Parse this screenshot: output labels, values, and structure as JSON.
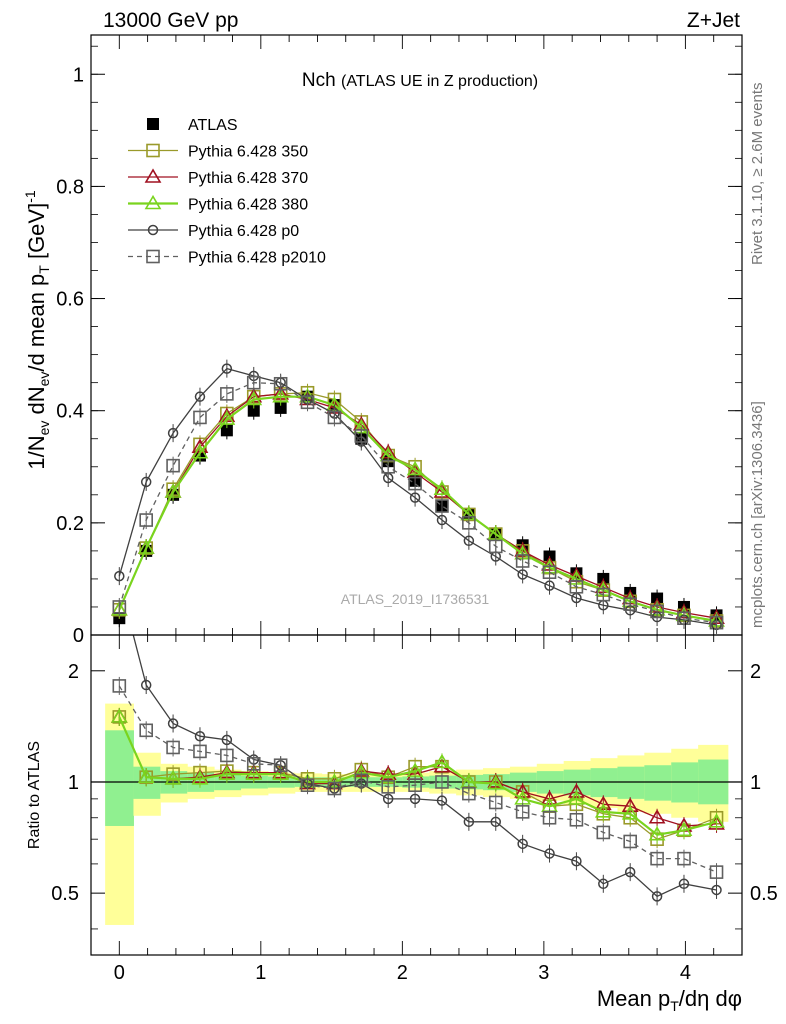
{
  "header": {
    "energy_label": "13000 GeV pp",
    "process_label": "Z+Jet"
  },
  "side_labels": {
    "rivet": "Rivet 3.1.10, ≥ 2.6M events",
    "mcplots": "mcplots.cern.ch [arXiv:1306.3436]"
  },
  "chart_data": [
    {
      "type": "line",
      "panel": "main",
      "title": "Nch",
      "subtitle": "(ATLAS UE in Z production)",
      "watermark": "ATLAS_2019_I1736531",
      "ylabel": "1/Nev dNev/d mean pT [GeV]-1",
      "ylim": [
        0,
        1.07
      ],
      "xlim": [
        -0.2,
        4.4
      ],
      "yticks": [
        0,
        0.2,
        0.4,
        0.6,
        0.8,
        1
      ],
      "ytick_labels": [
        "0",
        "0.2",
        "0.4",
        "0.6",
        "0.8",
        "1"
      ],
      "legend": "top-left",
      "x": [
        0.0,
        0.19,
        0.38,
        0.57,
        0.76,
        0.95,
        1.14,
        1.33,
        1.52,
        1.71,
        1.9,
        2.09,
        2.28,
        2.47,
        2.66,
        2.85,
        3.04,
        3.23,
        3.42,
        3.61,
        3.8,
        3.99,
        4.22
      ],
      "series": [
        {
          "name": "ATLAS",
          "color": "#000000",
          "marker": "filled-square",
          "line": "none",
          "values": [
            0.03,
            0.15,
            0.25,
            0.32,
            0.365,
            0.4,
            0.405,
            0.425,
            0.41,
            0.35,
            0.31,
            0.275,
            0.23,
            0.215,
            0.18,
            0.16,
            0.14,
            0.11,
            0.1,
            0.075,
            0.065,
            0.05,
            0.035
          ]
        },
        {
          "name": "Pythia 6.428 350",
          "color": "#9a9a2a",
          "marker": "open-square",
          "line": "solid",
          "values": [
            0.045,
            0.155,
            0.26,
            0.34,
            0.395,
            0.425,
            0.43,
            0.432,
            0.42,
            0.38,
            0.32,
            0.3,
            0.255,
            0.215,
            0.18,
            0.15,
            0.12,
            0.095,
            0.08,
            0.06,
            0.045,
            0.035,
            0.025
          ]
        },
        {
          "name": "Pythia 6.428 370",
          "color": "#a01020",
          "marker": "open-triangle",
          "line": "solid",
          "values": [
            0.045,
            0.155,
            0.255,
            0.335,
            0.39,
            0.425,
            0.43,
            0.42,
            0.405,
            0.375,
            0.325,
            0.29,
            0.255,
            0.215,
            0.18,
            0.15,
            0.125,
            0.105,
            0.085,
            0.065,
            0.05,
            0.04,
            0.03
          ]
        },
        {
          "name": "Pythia 6.428 380",
          "color": "#7ad41e",
          "marker": "open-triangle",
          "line": "solid",
          "values": [
            0.045,
            0.155,
            0.255,
            0.325,
            0.385,
            0.42,
            0.425,
            0.425,
            0.41,
            0.37,
            0.32,
            0.295,
            0.26,
            0.215,
            0.18,
            0.145,
            0.12,
            0.1,
            0.08,
            0.06,
            0.045,
            0.035,
            0.025
          ]
        },
        {
          "name": "Pythia 6.428 p0",
          "color": "#404040",
          "marker": "open-circle",
          "line": "solid",
          "values": [
            0.105,
            0.273,
            0.36,
            0.425,
            0.475,
            0.462,
            0.45,
            0.42,
            0.395,
            0.345,
            0.28,
            0.245,
            0.205,
            0.168,
            0.14,
            0.108,
            0.088,
            0.066,
            0.053,
            0.044,
            0.032,
            0.027,
            0.018
          ]
        },
        {
          "name": "Pythia 6.428 p2010",
          "color": "#606060",
          "marker": "open-square",
          "line": "dashed",
          "values": [
            0.05,
            0.205,
            0.302,
            0.388,
            0.43,
            0.45,
            0.448,
            0.415,
            0.388,
            0.355,
            0.3,
            0.27,
            0.23,
            0.2,
            0.158,
            0.132,
            0.112,
            0.086,
            0.072,
            0.055,
            0.042,
            0.03,
            0.022
          ]
        }
      ]
    },
    {
      "type": "line",
      "panel": "ratio",
      "ylabel": "Ratio to ATLAS",
      "xlabel": "Mean pT/dη dφ",
      "ylim": [
        0.34,
        2.5
      ],
      "log_y": true,
      "xlim": [
        -0.2,
        4.4
      ],
      "yticks": [
        0.5,
        1,
        2
      ],
      "ytick_labels": [
        "0.5",
        "1",
        "2"
      ],
      "xticks": [
        0,
        1,
        2,
        3,
        4
      ],
      "xtick_labels": [
        "0",
        "1",
        "2",
        "3",
        "4"
      ],
      "reference_line": 1,
      "x": [
        0.0,
        0.19,
        0.38,
        0.57,
        0.76,
        0.95,
        1.14,
        1.33,
        1.52,
        1.71,
        1.9,
        2.09,
        2.28,
        2.47,
        2.66,
        2.85,
        3.04,
        3.23,
        3.42,
        3.61,
        3.8,
        3.99,
        4.22
      ],
      "uncertainty_bands": {
        "bin_edges": [
          -0.1,
          0.1,
          0.29,
          0.48,
          0.67,
          0.86,
          1.05,
          1.24,
          1.43,
          1.62,
          1.81,
          2.0,
          2.19,
          2.38,
          2.57,
          2.76,
          2.95,
          3.14,
          3.33,
          3.52,
          3.71,
          3.9,
          4.09,
          4.3
        ],
        "inner": {
          "color": "#90f090",
          "low": [
            0.76,
            0.9,
            0.93,
            0.94,
            0.95,
            0.96,
            0.965,
            0.97,
            0.97,
            0.97,
            0.97,
            0.965,
            0.96,
            0.955,
            0.95,
            0.94,
            0.93,
            0.92,
            0.91,
            0.9,
            0.89,
            0.88,
            0.87
          ],
          "high": [
            1.38,
            1.1,
            1.07,
            1.06,
            1.05,
            1.04,
            1.035,
            1.03,
            1.03,
            1.03,
            1.03,
            1.035,
            1.04,
            1.045,
            1.05,
            1.06,
            1.07,
            1.08,
            1.09,
            1.1,
            1.11,
            1.13,
            1.15
          ]
        },
        "outer": {
          "color": "#ffff99",
          "low": [
            0.41,
            0.81,
            0.88,
            0.9,
            0.91,
            0.92,
            0.93,
            0.94,
            0.94,
            0.94,
            0.94,
            0.94,
            0.93,
            0.92,
            0.91,
            0.9,
            0.89,
            0.87,
            0.85,
            0.83,
            0.82,
            0.8,
            0.78
          ],
          "high": [
            1.63,
            1.2,
            1.12,
            1.1,
            1.08,
            1.07,
            1.06,
            1.055,
            1.05,
            1.05,
            1.055,
            1.06,
            1.07,
            1.08,
            1.09,
            1.1,
            1.12,
            1.14,
            1.16,
            1.18,
            1.2,
            1.23,
            1.26
          ]
        }
      },
      "series": [
        {
          "name": "Pythia 6.428 350",
          "color": "#9a9a2a",
          "marker": "open-square",
          "line": "solid",
          "values": [
            1.5,
            1.03,
            1.05,
            1.06,
            1.07,
            1.06,
            1.06,
            1.02,
            1.02,
            1.08,
            1.03,
            1.1,
            1.1,
            1.0,
            1.0,
            0.94,
            0.86,
            0.87,
            0.82,
            0.8,
            0.7,
            0.74,
            0.8
          ]
        },
        {
          "name": "Pythia 6.428 370",
          "color": "#a01020",
          "marker": "open-triangle",
          "line": "solid",
          "values": [
            1.5,
            1.03,
            1.02,
            1.03,
            1.06,
            1.06,
            1.06,
            0.99,
            0.99,
            1.07,
            1.05,
            1.05,
            1.1,
            1.0,
            1.0,
            0.94,
            0.9,
            0.94,
            0.87,
            0.86,
            0.8,
            0.76,
            0.77
          ]
        },
        {
          "name": "Pythia 6.428 380",
          "color": "#7ad41e",
          "marker": "open-triangle",
          "line": "solid",
          "values": [
            1.5,
            1.03,
            1.02,
            1.02,
            1.05,
            1.05,
            1.05,
            1.0,
            1.0,
            1.06,
            1.03,
            1.07,
            1.13,
            1.0,
            0.99,
            0.9,
            0.86,
            0.9,
            0.83,
            0.82,
            0.72,
            0.74,
            0.78
          ]
        },
        {
          "name": "Pythia 6.428 p0",
          "color": "#404040",
          "marker": "open-circle",
          "line": "solid",
          "values": [
            3.5,
            1.83,
            1.44,
            1.33,
            1.3,
            1.15,
            1.11,
            0.99,
            0.96,
            0.99,
            0.9,
            0.9,
            0.89,
            0.78,
            0.78,
            0.68,
            0.64,
            0.61,
            0.53,
            0.57,
            0.49,
            0.53,
            0.51
          ]
        },
        {
          "name": "Pythia 6.428 p2010",
          "color": "#606060",
          "marker": "open-square",
          "line": "dashed",
          "values": [
            1.82,
            1.38,
            1.24,
            1.21,
            1.18,
            1.12,
            1.11,
            0.98,
            0.96,
            1.01,
            0.97,
            0.98,
            1.0,
            0.93,
            0.88,
            0.83,
            0.8,
            0.79,
            0.73,
            0.69,
            0.62,
            0.62,
            0.57
          ]
        }
      ]
    }
  ]
}
